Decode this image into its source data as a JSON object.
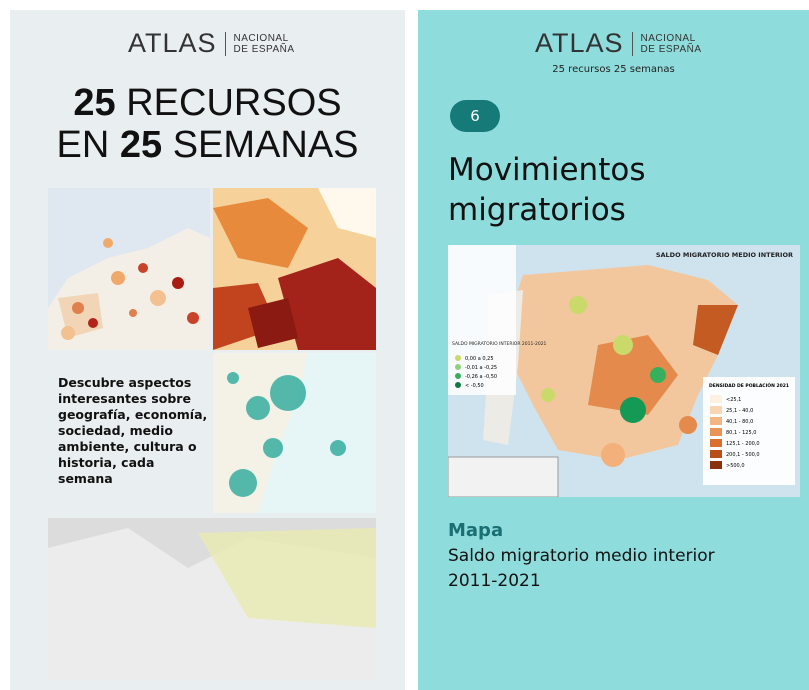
{
  "left": {
    "logo": {
      "brand": "ATLAS",
      "line1": "NACIONAL",
      "line2": "DE ESPAÑA"
    },
    "headline": {
      "line1_bold": "25",
      "line1_rest": "RECURSOS",
      "line2_start": "EN",
      "line2_bold": "25",
      "line2_rest": "SEMANAS"
    },
    "description": "Descubre aspectos interesantes sobre geografía, economía, sociedad, medio ambiente, cultura o historia, cada semana"
  },
  "right": {
    "logo": {
      "brand": "ATLAS",
      "line1": "NACIONAL",
      "line2": "DE ESPAÑA"
    },
    "subtitle": "25 recursos 25 semanas",
    "badge": "6",
    "title_line1": "Movimientos",
    "title_line2": "migratorios",
    "map": {
      "title": "SALDO MIGRATORIO MEDIO INTERIOR",
      "legend_title": "SALDO MIGRATORIO INTERIOR 2011-2021",
      "legend": [
        "0,00 a 0,25",
        "-0,01 a -0,25",
        "-0,26 a -0,50",
        "< -0,50"
      ],
      "density_title": "DENSIDAD DE POBLACIÓN 2021",
      "density": [
        "<25,1",
        "25,1 - 40,0",
        "40,1 - 80,0",
        "80,1 - 125,0",
        "125,1 - 200,0",
        "200,1 - 500,0",
        ">500,0"
      ]
    },
    "kind": "Mapa",
    "caption_line1": "Saldo migratorio medio interior",
    "caption_line2": "2011-2021"
  }
}
